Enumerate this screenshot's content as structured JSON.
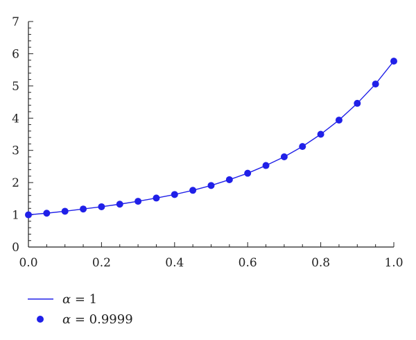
{
  "chart_data": {
    "type": "line",
    "title": "",
    "xlabel": "",
    "ylabel": "",
    "xlim": [
      0,
      1
    ],
    "ylim": [
      0,
      7
    ],
    "x_ticks": [
      0.0,
      0.2,
      0.4,
      0.6,
      0.8,
      1.0
    ],
    "x_tick_labels": [
      "0.0",
      "0.2",
      "0.4",
      "0.6",
      "0.8",
      "1.0"
    ],
    "y_ticks": [
      0,
      1,
      2,
      3,
      4,
      5,
      6,
      7
    ],
    "y_tick_labels": [
      "0",
      "1",
      "2",
      "3",
      "4",
      "5",
      "6",
      "7"
    ],
    "grid": false,
    "legend_position": "bottom-left",
    "colors": {
      "series": "#2020e8",
      "axis": "#222222"
    },
    "series": [
      {
        "name": "α = 1",
        "legend_symbol": "α",
        "legend_rest": " = 1",
        "style": "line",
        "x": [
          0.0,
          0.05,
          0.1,
          0.15,
          0.2,
          0.25,
          0.3,
          0.35,
          0.4,
          0.45,
          0.5,
          0.55,
          0.6,
          0.65,
          0.7,
          0.75,
          0.8,
          0.85,
          0.9,
          0.95,
          1.0
        ],
        "values": [
          1.0,
          1.05,
          1.11,
          1.18,
          1.25,
          1.33,
          1.42,
          1.52,
          1.63,
          1.76,
          1.91,
          2.09,
          2.29,
          2.53,
          2.8,
          3.12,
          3.5,
          3.94,
          4.46,
          5.06,
          5.77
        ]
      },
      {
        "name": "α = 0.9999",
        "legend_symbol": "α",
        "legend_rest": " = 0.9999",
        "style": "markers",
        "x": [
          0.0,
          0.05,
          0.1,
          0.15,
          0.2,
          0.25,
          0.3,
          0.35,
          0.4,
          0.45,
          0.5,
          0.55,
          0.6,
          0.65,
          0.7,
          0.75,
          0.8,
          0.85,
          0.9,
          0.95,
          1.0
        ],
        "values": [
          1.0,
          1.05,
          1.11,
          1.18,
          1.25,
          1.33,
          1.42,
          1.52,
          1.63,
          1.76,
          1.91,
          2.09,
          2.29,
          2.53,
          2.8,
          3.12,
          3.5,
          3.94,
          4.46,
          5.06,
          5.77
        ]
      }
    ]
  }
}
